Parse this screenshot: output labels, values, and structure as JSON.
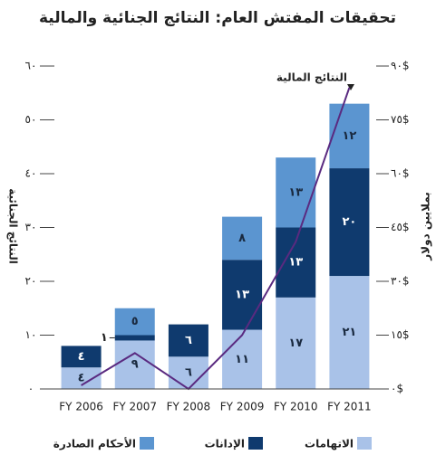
{
  "chart_data": {
    "type": "stacked-bar-line",
    "title": "تحقيقات المفتش العام: النتائج الجنائية والمالية",
    "y_label": "النتائج الجنائية",
    "y2_label": "بملايين دولار",
    "line_label": "النتائج المالية",
    "categories": [
      "FY 2006",
      "FY 2007",
      "FY 2008",
      "FY 2009",
      "FY 2010",
      "FY 2011"
    ],
    "series": [
      {
        "name": "الاتهامات",
        "color": "#a9c2e8",
        "values": [
          4,
          9,
          6,
          11,
          17,
          21
        ],
        "value_labels": [
          "٤",
          "٩",
          "٦",
          "١١",
          "١٧",
          "٢١"
        ]
      },
      {
        "name": "الإدانات",
        "color": "#0f3a6e",
        "values": [
          4,
          1,
          6,
          13,
          13,
          20
        ],
        "value_labels": [
          "٤",
          "١",
          "٦",
          "١٣",
          "١٣",
          "٢٠"
        ]
      },
      {
        "name": "الأحكام الصادرة",
        "color": "#5b95d0",
        "values": [
          null,
          5,
          null,
          8,
          13,
          12
        ],
        "value_labels": [
          null,
          "٥",
          null,
          "٨",
          "١٣",
          "١٢"
        ]
      },
      {
        "name": "النتائج المالية",
        "type": "line",
        "axis": "y2",
        "color": "#5a2a80",
        "values": [
          1,
          10,
          0,
          15,
          41,
          84
        ]
      }
    ],
    "ylim": [
      0,
      60
    ],
    "yticks": [
      {
        "value": 0,
        "label": "٠"
      },
      {
        "value": 10,
        "label": "١٠"
      },
      {
        "value": 20,
        "label": "٢٠"
      },
      {
        "value": 30,
        "label": "٣٠"
      },
      {
        "value": 40,
        "label": "٤٠"
      },
      {
        "value": 50,
        "label": "٥٠"
      },
      {
        "value": 60,
        "label": "٦٠"
      }
    ],
    "y2lim": [
      0,
      90
    ],
    "y2ticks": [
      {
        "value": 0,
        "label": "٠$"
      },
      {
        "value": 15,
        "label": "١٥$"
      },
      {
        "value": 30,
        "label": "٣٠$"
      },
      {
        "value": 45,
        "label": "٤٥$"
      },
      {
        "value": 60,
        "label": "٦٠$"
      },
      {
        "value": 75,
        "label": "٧٥$"
      },
      {
        "value": 90,
        "label": "٩٠$"
      }
    ]
  }
}
